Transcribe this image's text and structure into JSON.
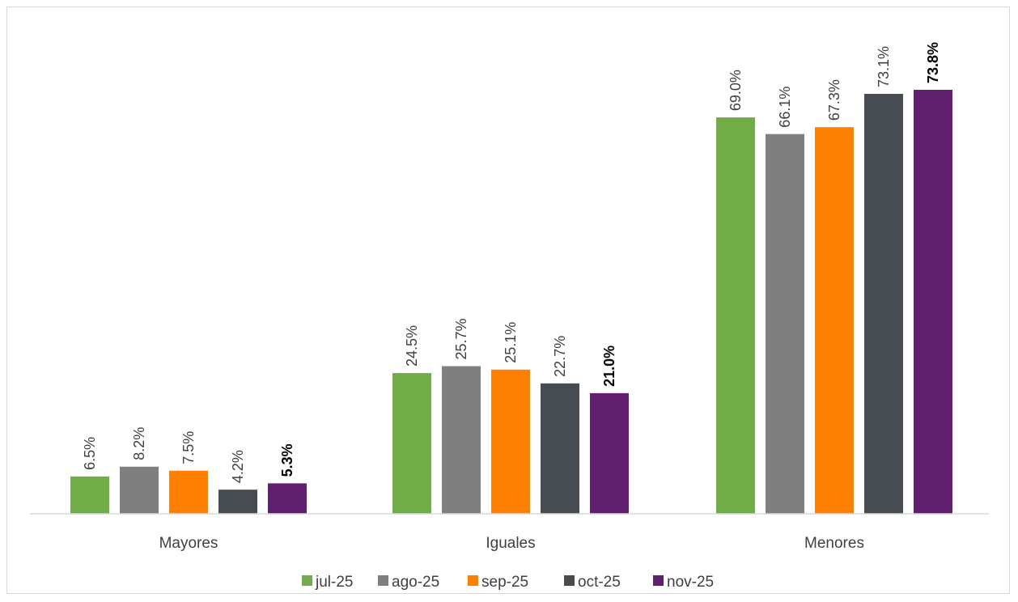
{
  "chart_data": {
    "type": "bar",
    "categories": [
      "Mayores",
      "Iguales",
      "Menores"
    ],
    "series": [
      {
        "name": "jul-25",
        "color": "#70ad47",
        "values": [
          6.5,
          24.5,
          69.0
        ],
        "labels": [
          "6.5%",
          "24.5%",
          "69.0%"
        ],
        "bold": false
      },
      {
        "name": "ago-25",
        "color": "#7f7f7f",
        "values": [
          8.2,
          25.7,
          66.1
        ],
        "labels": [
          "8.2%",
          "25.7%",
          "66.1%"
        ],
        "bold": false
      },
      {
        "name": "sep-25",
        "color": "#ff8000",
        "values": [
          7.5,
          25.1,
          67.3
        ],
        "labels": [
          "7.5%",
          "25.1%",
          "67.3%"
        ],
        "bold": false
      },
      {
        "name": "oct-25",
        "color": "#464c52",
        "values": [
          4.2,
          22.7,
          73.1
        ],
        "labels": [
          "4.2%",
          "22.7%",
          "73.1%"
        ],
        "bold": false
      },
      {
        "name": "nov-25",
        "color": "#5f1f6e",
        "values": [
          5.3,
          21.0,
          73.8
        ],
        "labels": [
          "5.3%",
          "21.0%",
          "73.8%"
        ],
        "bold": true
      }
    ],
    "title": "",
    "xlabel": "",
    "ylabel": "",
    "ylim": [
      0,
      80
    ],
    "grid": false,
    "legend": "bottom"
  }
}
